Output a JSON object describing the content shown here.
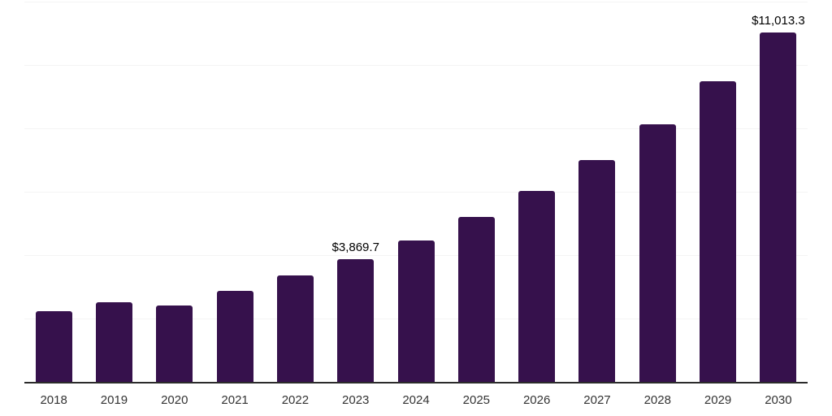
{
  "chart_data": {
    "type": "bar",
    "title": "",
    "categories": [
      "2018",
      "2019",
      "2020",
      "2021",
      "2022",
      "2023",
      "2024",
      "2025",
      "2026",
      "2027",
      "2028",
      "2029",
      "2030"
    ],
    "values": [
      2220,
      2520,
      2420,
      2870,
      3350,
      3869.7,
      4470,
      5200,
      6030,
      7000,
      8120,
      9480,
      11013.3
    ],
    "value_labels": [
      "",
      "",
      "",
      "",
      "",
      "$3,869.7",
      "",
      "",
      "",
      "",
      "",
      "",
      "$11,013.3"
    ],
    "labeled_points": [
      {
        "category": "2023",
        "label": "$3,869.7",
        "value": 3869.7
      },
      {
        "category": "2030",
        "label": "$11,013.3",
        "value": 11013.3
      }
    ],
    "xlabel": "",
    "ylabel": "",
    "ylim": [
      0,
      12000
    ],
    "gridline_step": 2000,
    "grid": "on",
    "legend_position": "none",
    "y_axis_tick_labels": "none",
    "colors": {
      "bar": "#36114C",
      "axis": "#2b2b2b",
      "gridline": "#f4f4f4",
      "tick_label": "#333333",
      "value_label": "#000000",
      "background": "#ffffff"
    }
  }
}
